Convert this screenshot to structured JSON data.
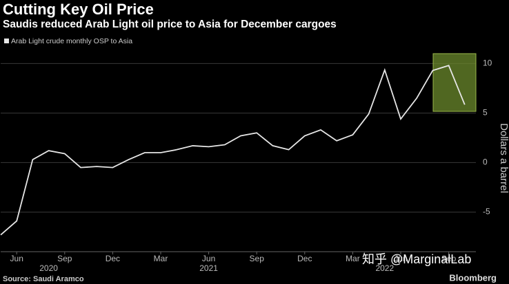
{
  "chart_data": {
    "type": "line",
    "title": "Cutting Key Oil Price",
    "subtitle": "Saudis reduced Arab Light oil price to Asia for December cargoes",
    "y_axis_label": "Dollars a barrel",
    "source": "Source: Saudi Aramco",
    "brand": "Bloomberg",
    "watermark": "知乎 @MarginalLab",
    "x": [
      "2020-05",
      "2020-06",
      "2020-07",
      "2020-08",
      "2020-09",
      "2020-10",
      "2020-11",
      "2020-12",
      "2021-01",
      "2021-02",
      "2021-03",
      "2021-04",
      "2021-05",
      "2021-06",
      "2021-07",
      "2021-08",
      "2021-09",
      "2021-10",
      "2021-11",
      "2021-12",
      "2022-01",
      "2022-02",
      "2022-03",
      "2022-04",
      "2022-05",
      "2022-06",
      "2022-07",
      "2022-08",
      "2022-09",
      "2022-10"
    ],
    "series": [
      {
        "name": "Arab Light crude monthly OSP to Asia",
        "color": "#e6e6e6",
        "values": [
          -7.3,
          -5.9,
          0.3,
          1.2,
          0.9,
          -0.5,
          -0.4,
          -0.5,
          0.3,
          1.0,
          1.0,
          1.3,
          1.7,
          1.6,
          1.8,
          2.7,
          3.0,
          1.7,
          1.3,
          2.7,
          3.3,
          2.2,
          2.8,
          4.9,
          9.35,
          4.4,
          6.5,
          9.3,
          9.8,
          5.85
        ]
      }
    ],
    "ylim": [
      -9,
      11
    ],
    "yticks": [
      10,
      5,
      0,
      -5
    ],
    "grid": true,
    "xticks": [
      {
        "value": "2020-06",
        "label": "Jun"
      },
      {
        "value": "2020-09",
        "label": "Sep"
      },
      {
        "value": "2020-12",
        "label": "Dec"
      },
      {
        "value": "2021-03",
        "label": "Mar"
      },
      {
        "value": "2021-06",
        "label": "Jun"
      },
      {
        "value": "2021-09",
        "label": "Sep"
      },
      {
        "value": "2021-12",
        "label": "Dec"
      },
      {
        "value": "2022-03",
        "label": "Mar"
      },
      {
        "value": "2022-06",
        "label": "Jun"
      },
      {
        "value": "2022-09",
        "label": "Sep"
      }
    ],
    "year_labels": [
      {
        "value": "2020-08",
        "label": "2020"
      },
      {
        "value": "2021-06",
        "label": "2021"
      },
      {
        "value": "2022-05",
        "label": "2022"
      }
    ]
  }
}
